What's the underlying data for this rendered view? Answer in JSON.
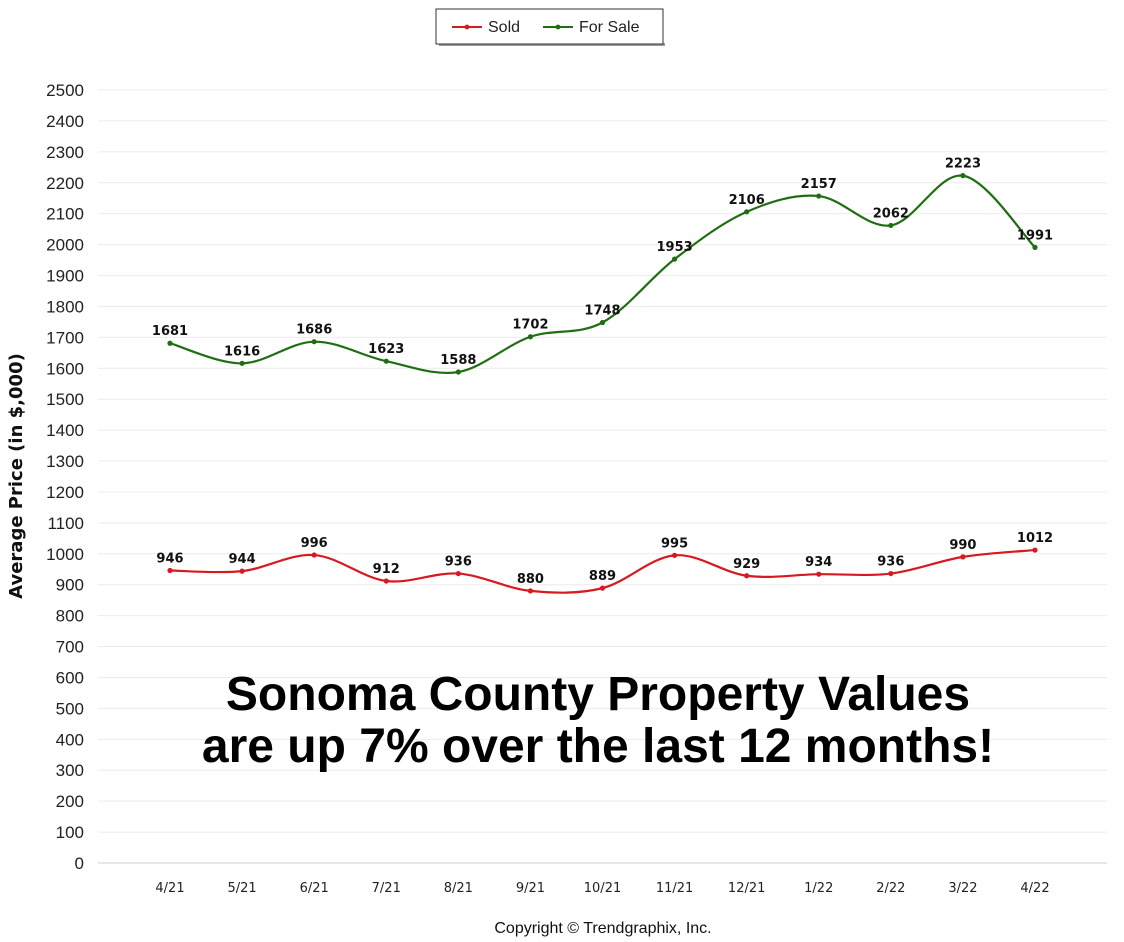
{
  "chart_data": {
    "type": "line",
    "categories": [
      "4/21",
      "5/21",
      "6/21",
      "7/21",
      "8/21",
      "9/21",
      "10/21",
      "11/21",
      "12/21",
      "1/22",
      "2/22",
      "3/22",
      "4/22"
    ],
    "series": [
      {
        "name": "Sold",
        "color": "#d71920",
        "values": [
          946,
          944,
          996,
          912,
          936,
          880,
          889,
          995,
          929,
          934,
          936,
          990,
          1012
        ]
      },
      {
        "name": "For Sale",
        "color": "#1f6f12",
        "values": [
          1681,
          1616,
          1686,
          1623,
          1588,
          1702,
          1748,
          1953,
          2106,
          2157,
          2062,
          2223,
          1991
        ]
      }
    ],
    "ylabel": "Average Price (in $,000)",
    "xlabel": "",
    "ylim": [
      0,
      2500
    ],
    "y_ticks": [
      0,
      100,
      200,
      300,
      400,
      500,
      600,
      700,
      800,
      900,
      1000,
      1100,
      1200,
      1300,
      1400,
      1500,
      1600,
      1700,
      1800,
      1900,
      2000,
      2100,
      2200,
      2300,
      2400,
      2500
    ],
    "grid": true,
    "legend_position": "top-center",
    "annotation": {
      "line1": "Sonoma County Property Values",
      "line2": "are up 7% over the last 12 months!"
    },
    "copyright": "Copyright © Trendgraphix, Inc."
  }
}
